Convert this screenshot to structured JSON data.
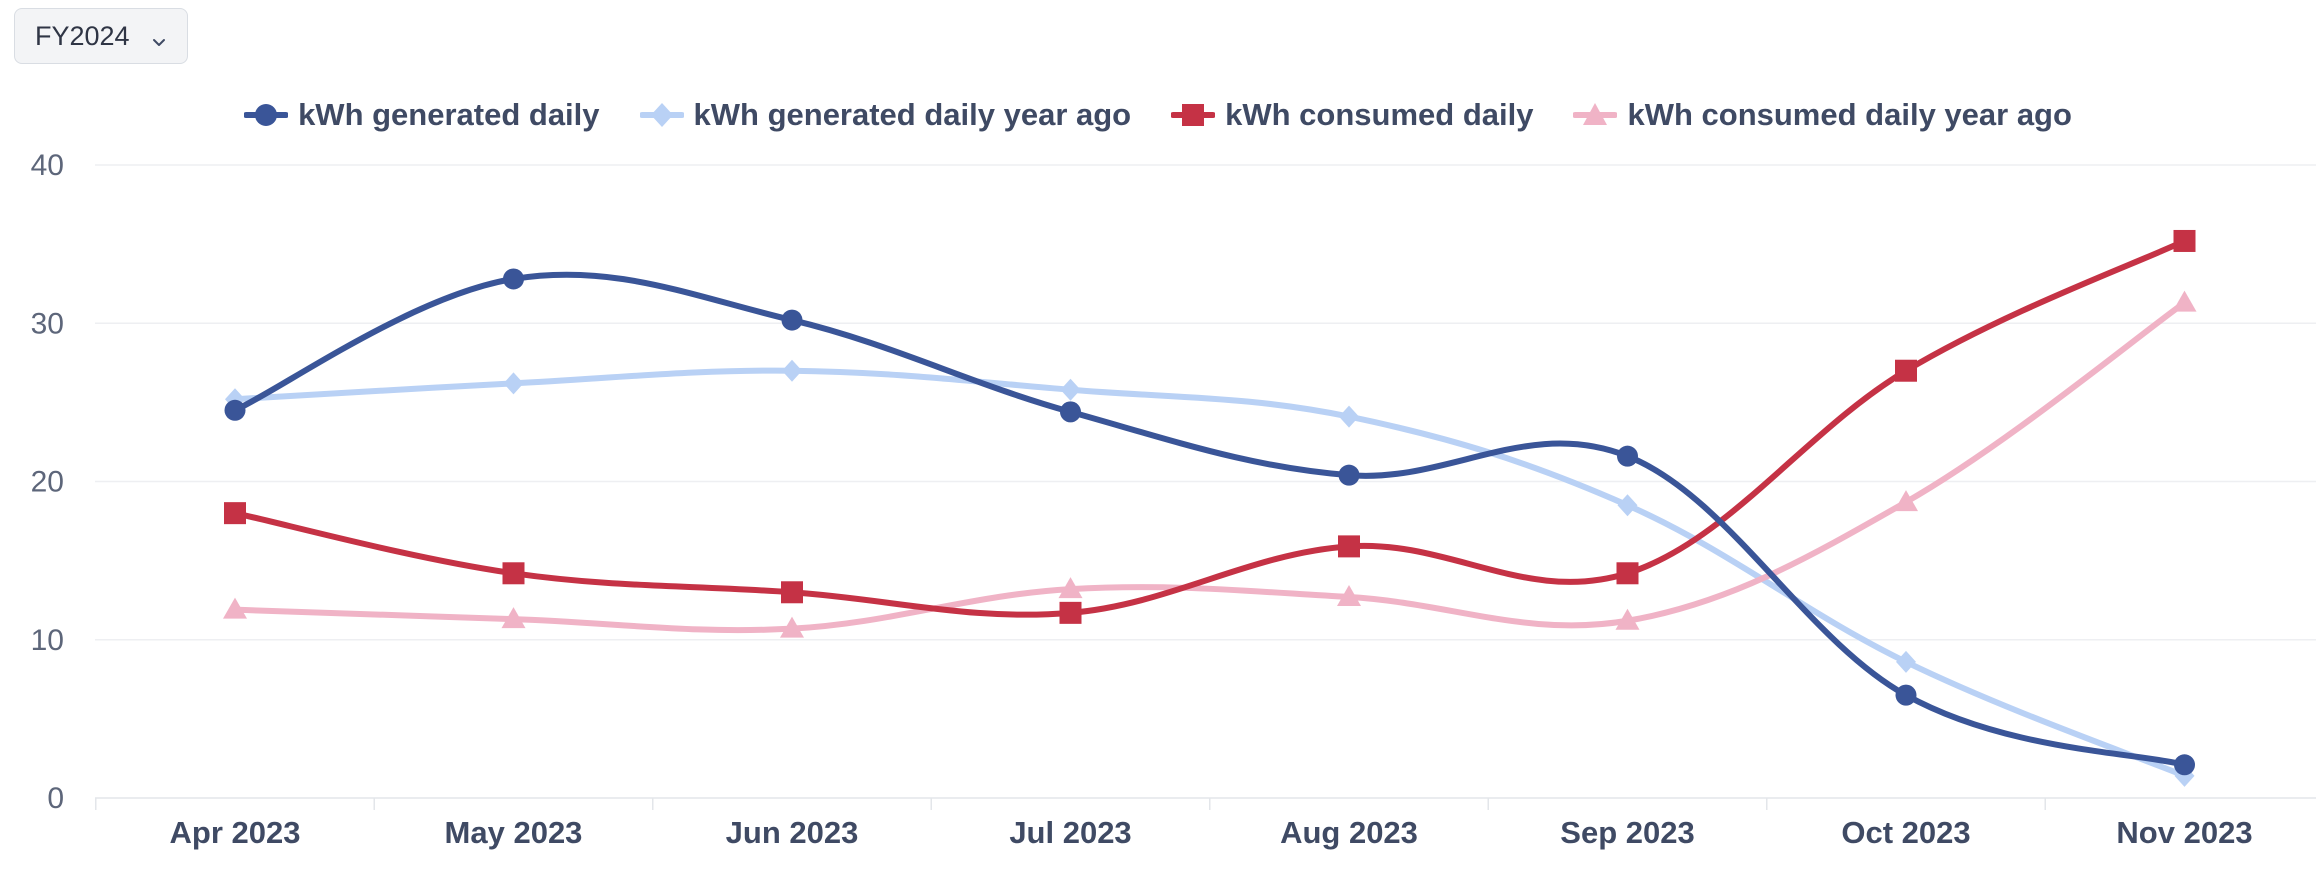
{
  "selector": {
    "value": "FY2024",
    "icon": "chevron-down-icon"
  },
  "chart_data": {
    "type": "line",
    "categories": [
      "Apr 2023",
      "May 2023",
      "Jun 2023",
      "Jul 2023",
      "Aug 2023",
      "Sep 2023",
      "Oct 2023",
      "Nov 2023"
    ],
    "ylim": [
      0,
      40
    ],
    "yticks": [
      "0",
      "10",
      "20",
      "30",
      "40"
    ],
    "ytick_values": [
      0,
      10,
      20,
      30,
      40
    ],
    "grid": true,
    "legend_position": "top-center",
    "smooth": true,
    "series": [
      {
        "name": "kWh generated daily",
        "color": "#3a5598",
        "marker": "circle",
        "values": [
          24.5,
          32.8,
          30.2,
          24.4,
          20.4,
          21.6,
          6.5,
          2.1
        ]
      },
      {
        "name": "kWh generated daily year ago",
        "color": "#b9d1f5",
        "marker": "diamond",
        "values": [
          25.2,
          26.2,
          27.0,
          25.8,
          24.1,
          18.5,
          8.6,
          1.4
        ]
      },
      {
        "name": "kWh consumed daily",
        "color": "#c53245",
        "marker": "square",
        "values": [
          18.0,
          14.2,
          13.0,
          11.7,
          15.9,
          14.2,
          27.0,
          35.2
        ]
      },
      {
        "name": "kWh consumed daily year ago",
        "color": "#f0b3c6",
        "marker": "triangle",
        "values": [
          11.9,
          11.3,
          10.7,
          13.2,
          12.7,
          11.2,
          18.7,
          31.3
        ]
      }
    ]
  }
}
